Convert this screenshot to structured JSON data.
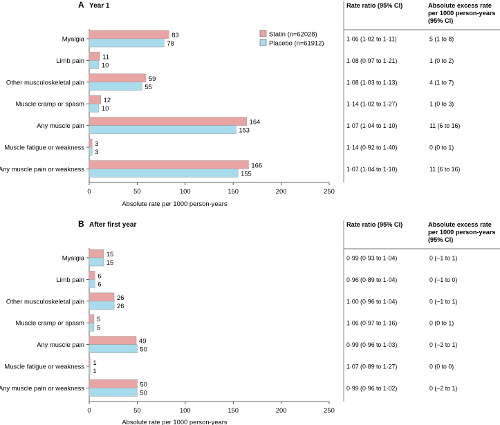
{
  "chart_data": [
    {
      "type": "bar",
      "orientation": "horizontal",
      "panel_letter": "A",
      "title": "Year 1",
      "categories": [
        "Myalgia",
        "Limb pain",
        "Other musculoskeletal pain",
        "Muscle cramp or spasm",
        "Any muscle pain",
        "Muscle fatigue or weakness",
        "Any muscle pain or weakness"
      ],
      "series": [
        {
          "name": "Statin (n=62028)",
          "color": "#e8a5a3",
          "values": [
            83,
            11,
            59,
            12,
            164,
            3,
            166
          ]
        },
        {
          "name": "Placebo (n=61912)",
          "color": "#a8dcec",
          "values": [
            78,
            10,
            55,
            10,
            153,
            3,
            155
          ]
        }
      ],
      "xlabel": "Absolute rate per 1000 person-years",
      "xlim": [
        0,
        250
      ],
      "xticks": [
        "0",
        "50",
        "100",
        "150",
        "200",
        "250"
      ],
      "rate_ratio_header": "Rate ratio (95% CI)",
      "excess_header": [
        "Absolute excess rate",
        "per 1000 person-years",
        "(95% CI)"
      ],
      "rate_ratios": [
        "1·06 (1·02 to 1·11)",
        "1·08 (0·97 to 1·21)",
        "1·08 (1·03 to 1·13)",
        "1·14 (1·02 to 1·27)",
        "1·07 (1·04 to 1·10)",
        "1·14 (0·92 to 1·40)",
        "1·07 (1·04 to 1·10)"
      ],
      "excess_rates": [
        "5 (1 to 8)",
        "1 (0 to 2)",
        "4 (1 to 7)",
        "1 (0 to 3)",
        "11 (6 to 16)",
        "0 (0 to 1)",
        "11 (6 to 16)"
      ]
    },
    {
      "type": "bar",
      "orientation": "horizontal",
      "panel_letter": "B",
      "title": "After first year",
      "categories": [
        "Myalgia",
        "Limb pain",
        "Other musculoskeletal pain",
        "Muscle cramp or spasm",
        "Any muscle pain",
        "Muscle fatigue or weakness",
        "Any muscle pain or weakness"
      ],
      "series": [
        {
          "name": "Statin",
          "color": "#e8a5a3",
          "values": [
            15,
            6,
            26,
            5,
            49,
            1,
            50
          ]
        },
        {
          "name": "Placebo",
          "color": "#a8dcec",
          "values": [
            15,
            6,
            26,
            5,
            50,
            1,
            50
          ]
        }
      ],
      "xlabel": "Absolute rate per 1000 person-years",
      "xlim": [
        0,
        250
      ],
      "xticks": [
        "0",
        "50",
        "100",
        "150",
        "200",
        "250"
      ],
      "rate_ratio_header": "Rate ratio (95% CI)",
      "excess_header": [
        "Absolute excess rate",
        "per 1000 person-years",
        "(95% CI)"
      ],
      "rate_ratios": [
        "0·99 (0·93 to 1·04)",
        "0·96 (0·89 to 1·04)",
        "1·00 (0·96 to 1·04)",
        "1·06 (0·97 to 1·16)",
        "0·99 (0·96 to 1·03)",
        "1·07 (0·89 to 1·27)",
        "0·99 (0·96 to 1·02)"
      ],
      "excess_rates": [
        "0 (−1 to 1)",
        "0 (−1 to 0)",
        "0 (−1 to 1)",
        "0 (0 to 1)",
        "0 (−2 to 1)",
        "0 (0 to 0)",
        "0 (−2 to 1)"
      ]
    }
  ],
  "legend": [
    {
      "label": "Statin (n=62028)",
      "color": "#e8a5a3"
    },
    {
      "label": "Placebo (n=61912)",
      "color": "#a8dcec"
    }
  ],
  "colors": {
    "statin": "#e8a5a3",
    "placebo": "#a8dcec",
    "bar_border": "#9a9a9a",
    "axis": "#333333"
  }
}
